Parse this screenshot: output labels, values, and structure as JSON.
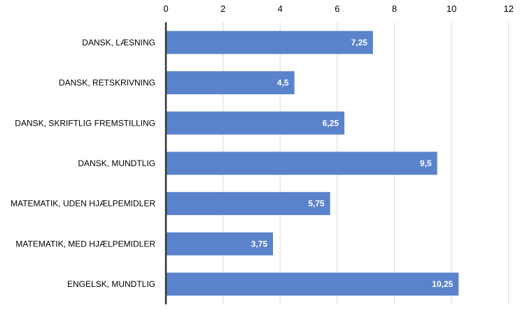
{
  "chart_data": {
    "type": "bar",
    "orientation": "horizontal",
    "categories": [
      "DANSK, LÆSNING",
      "DANSK, RETSKRIVNING",
      "DANSK, SKRIFTLIG FREMSTILLING",
      "DANSK, MUNDTLIG",
      "MATEMATIK, UDEN HJÆLPEMIDLER",
      "MATEMATIK, MED HJÆLPEMIDLER",
      "ENGELSK, MUNDTLIG"
    ],
    "values": [
      7.25,
      4.5,
      6.25,
      9.5,
      5.75,
      3.75,
      10.25
    ],
    "data_labels": [
      "7,25",
      "4,5",
      "6,25",
      "9,5",
      "5,75",
      "3,75",
      "10,25"
    ],
    "xlim": [
      0,
      12
    ],
    "x_ticks": [
      0,
      2,
      4,
      6,
      8,
      10,
      12
    ],
    "x_tick_labels": [
      "0",
      "2",
      "4",
      "6",
      "8",
      "10",
      "12"
    ],
    "x_axis_position": "top",
    "grid": true,
    "colors": {
      "bar": "#5B83CC",
      "bar_label": "#FFFFFF",
      "grid": "#D9D9D9",
      "axis": "#333333",
      "text": "#000000"
    }
  }
}
